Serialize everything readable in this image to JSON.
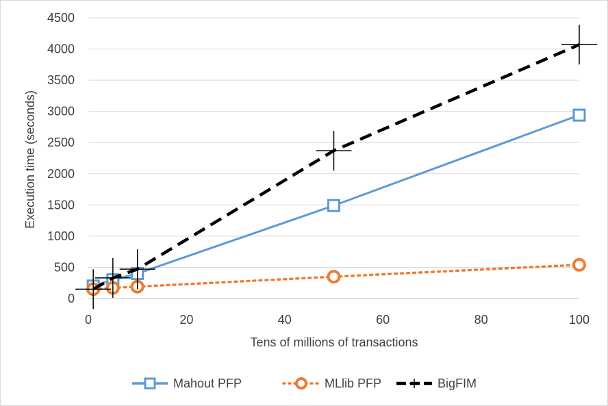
{
  "chart_data": {
    "type": "line",
    "title": "",
    "xlabel": "Tens of millions of transactions",
    "ylabel": "Execution time (seconds)",
    "xlim": [
      0,
      100
    ],
    "ylim": [
      0,
      4500
    ],
    "x_ticks": [
      "0",
      "20",
      "40",
      "60",
      "80",
      "100"
    ],
    "y_ticks": [
      "0",
      "500",
      "1000",
      "1500",
      "2000",
      "2500",
      "3000",
      "3500",
      "4000",
      "4500"
    ],
    "grid": "horizontal",
    "legend_position": "bottom",
    "x": [
      1,
      5,
      10,
      50,
      100
    ],
    "series": [
      {
        "name": "Mahout PFP",
        "values": [
          200,
          300,
          400,
          1490,
          2940
        ],
        "color": "#5b9bd5",
        "line": "solid",
        "marker": "square"
      },
      {
        "name": "MLlib PFP",
        "values": [
          150,
          170,
          190,
          350,
          540
        ],
        "color": "#ed7d31",
        "line": "dotted",
        "marker": "circle"
      },
      {
        "name": "BigFIM",
        "values": [
          150,
          330,
          470,
          2370,
          4070
        ],
        "color": "#000000",
        "line": "dashed",
        "marker": "plus"
      }
    ]
  }
}
